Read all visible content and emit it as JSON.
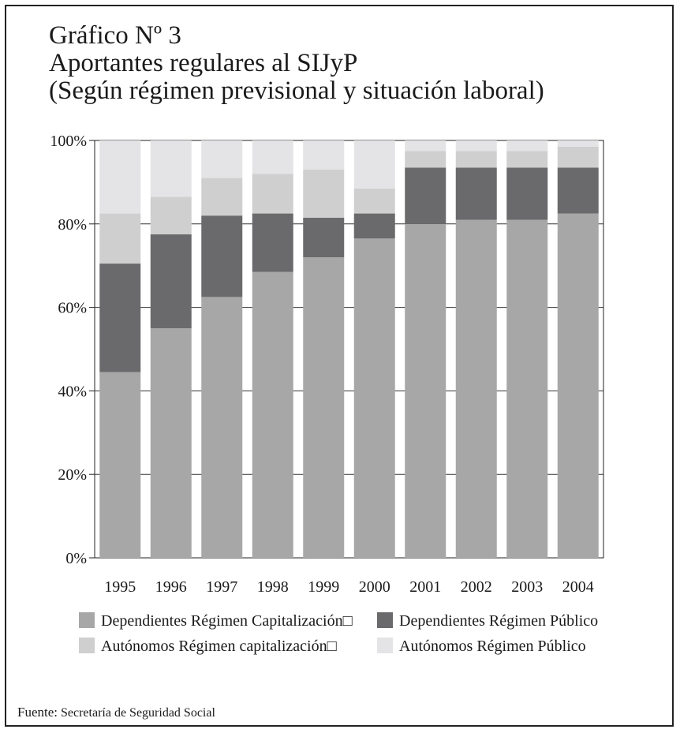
{
  "chart_data": {
    "type": "bar",
    "stacked": true,
    "title_lines": [
      "Gráfico Nº 3",
      "Aportantes regulares al SIJyP",
      "(Según régimen previsional y situación laboral)"
    ],
    "categories": [
      "1995",
      "1996",
      "1997",
      "1998",
      "1999",
      "2000",
      "2001",
      "2002",
      "2003",
      "2004"
    ],
    "y_ticks": [
      "0%",
      "20%",
      "40%",
      "60%",
      "80%",
      "100%"
    ],
    "ylim": [
      0,
      100
    ],
    "grid": "horizontal",
    "legend_position": "bottom",
    "series": [
      {
        "name": "Dependientes Régimen Capitalización",
        "legend_label": "Dependientes Régimen Capitalización□",
        "color": "#a7a7a7",
        "values": [
          44.5,
          55.0,
          62.5,
          68.5,
          72.0,
          76.5,
          80.0,
          81.0,
          81.0,
          82.5
        ]
      },
      {
        "name": "Dependientes Régimen Público",
        "legend_label": "Dependientes Régimen Público",
        "color": "#6a6a6c",
        "values": [
          26.0,
          22.5,
          19.5,
          14.0,
          9.5,
          6.0,
          13.5,
          12.5,
          12.5,
          11.0
        ]
      },
      {
        "name": "Autónomos Régimen capitalización",
        "legend_label": "Autónomos Régimen capitalización□",
        "color": "#cfcfcf",
        "values": [
          12.0,
          9.0,
          9.0,
          9.5,
          11.5,
          6.0,
          4.0,
          4.0,
          4.0,
          5.0
        ]
      },
      {
        "name": "Autónomos Régimen Público",
        "legend_label": "Autónomos Régimen Público",
        "color": "#e4e4e6",
        "values": [
          17.5,
          13.5,
          9.0,
          8.0,
          7.0,
          11.5,
          2.5,
          2.5,
          2.5,
          1.5
        ]
      }
    ]
  },
  "source": {
    "label": "Fuente:",
    "text": "Secretaría de Seguridad Social"
  }
}
